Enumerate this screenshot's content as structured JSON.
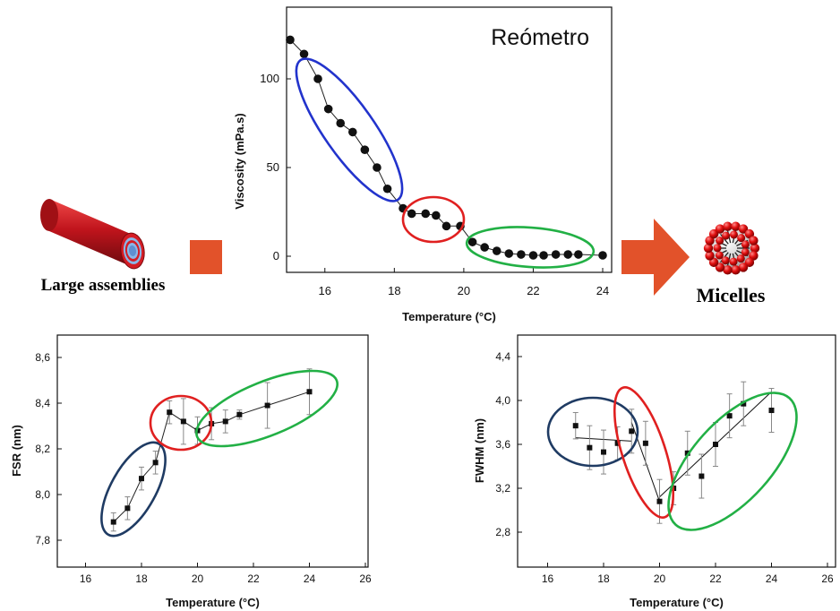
{
  "labels": {
    "left": "Large assemblies",
    "right": "Micelles"
  },
  "colors": {
    "arrow": "#e2522a",
    "rod": "#c0141c",
    "rod_core": "#6fa8dc",
    "ellipse_blue": "#2233cc",
    "ellipse_navy": "#1f3b63",
    "ellipse_red": "#e02020",
    "ellipse_green": "#22b045",
    "micelle_red": "#e01010"
  },
  "chart_data": [
    {
      "id": "viscosity",
      "type": "line",
      "title": "",
      "annotation": "Reómetro",
      "xlabel": "Temperature (°C)",
      "ylabel": "Viscosity (mPa.s)",
      "xlim": [
        15,
        24
      ],
      "ylim": [
        -8,
        138
      ],
      "xticks": [
        16,
        18,
        20,
        22,
        24
      ],
      "yticks": [
        0,
        50,
        100
      ],
      "series": [
        {
          "x": [
            15.0,
            15.4,
            15.8,
            16.1,
            16.45,
            16.8,
            17.15,
            17.5,
            17.8,
            18.25,
            18.5,
            18.9,
            19.2,
            19.5,
            19.9,
            20.25,
            20.6,
            20.95,
            21.3,
            21.65,
            22.0,
            22.3,
            22.65,
            23.0,
            23.3,
            24.0
          ],
          "y": [
            122,
            114,
            100,
            83,
            75,
            70,
            60,
            50,
            38,
            27,
            24,
            24,
            23,
            17,
            17,
            8,
            5,
            3,
            1.5,
            1,
            0.5,
            0.5,
            1,
            1,
            1,
            0.5
          ]
        }
      ],
      "ellipses": [
        "blue",
        "red",
        "green"
      ]
    },
    {
      "id": "fsr",
      "type": "line",
      "title": "",
      "xlabel": "Temperature (°C)",
      "ylabel": "FSR (nm)",
      "xlim": [
        15,
        26
      ],
      "ylim": [
        7.7,
        8.7
      ],
      "xticks": [
        16,
        18,
        20,
        22,
        24,
        26
      ],
      "yticks": [
        "7,8",
        "8,0",
        "8,2",
        "8,4",
        "8,6"
      ],
      "series": [
        {
          "x": [
            17.0,
            17.5,
            18.0,
            18.5,
            19.0,
            19.5,
            20.0,
            20.5,
            21.0,
            21.5,
            22.5,
            24.0
          ],
          "y": [
            7.88,
            7.94,
            8.07,
            8.14,
            8.36,
            8.32,
            8.28,
            8.31,
            8.32,
            8.35,
            8.39,
            8.45
          ],
          "err": [
            0.04,
            0.05,
            0.05,
            0.05,
            0.05,
            0.1,
            0.06,
            0.07,
            0.05,
            0.02,
            0.1,
            0.1
          ]
        }
      ],
      "ellipses": [
        "navy",
        "red",
        "green"
      ]
    },
    {
      "id": "fwhm",
      "type": "line",
      "title": "",
      "xlabel": "Temperature (°C)",
      "ylabel": "FWHM (nm)",
      "xlim": [
        15,
        26
      ],
      "ylim": [
        2.6,
        4.5
      ],
      "xticks": [
        16,
        18,
        20,
        22,
        24,
        26
      ],
      "yticks": [
        "2,8",
        "3,2",
        "3,6",
        "4,0",
        "4,4"
      ],
      "series": [
        {
          "x": [
            17.0,
            17.5,
            18.0,
            18.5,
            19.0,
            19.5,
            20.0,
            20.5,
            21.0,
            21.5,
            22.0,
            22.5,
            23.0,
            24.0
          ],
          "y": [
            3.77,
            3.57,
            3.53,
            3.61,
            3.72,
            3.61,
            3.08,
            3.2,
            3.52,
            3.31,
            3.6,
            3.86,
            3.97,
            3.91
          ],
          "err": [
            0.12,
            0.2,
            0.2,
            0.15,
            0.2,
            0.2,
            0.2,
            0.15,
            0.2,
            0.2,
            0.2,
            0.2,
            0.2,
            0.2
          ]
        }
      ],
      "fit": [
        {
          "x": [
            17.0,
            19.0
          ],
          "y": [
            3.66,
            3.63
          ]
        },
        {
          "x": [
            19.0,
            20.0
          ],
          "y": [
            3.8,
            3.08
          ]
        },
        {
          "x": [
            20.0,
            24.0
          ],
          "y": [
            3.12,
            4.08
          ]
        }
      ],
      "ellipses": [
        "navy",
        "red",
        "green"
      ]
    }
  ]
}
